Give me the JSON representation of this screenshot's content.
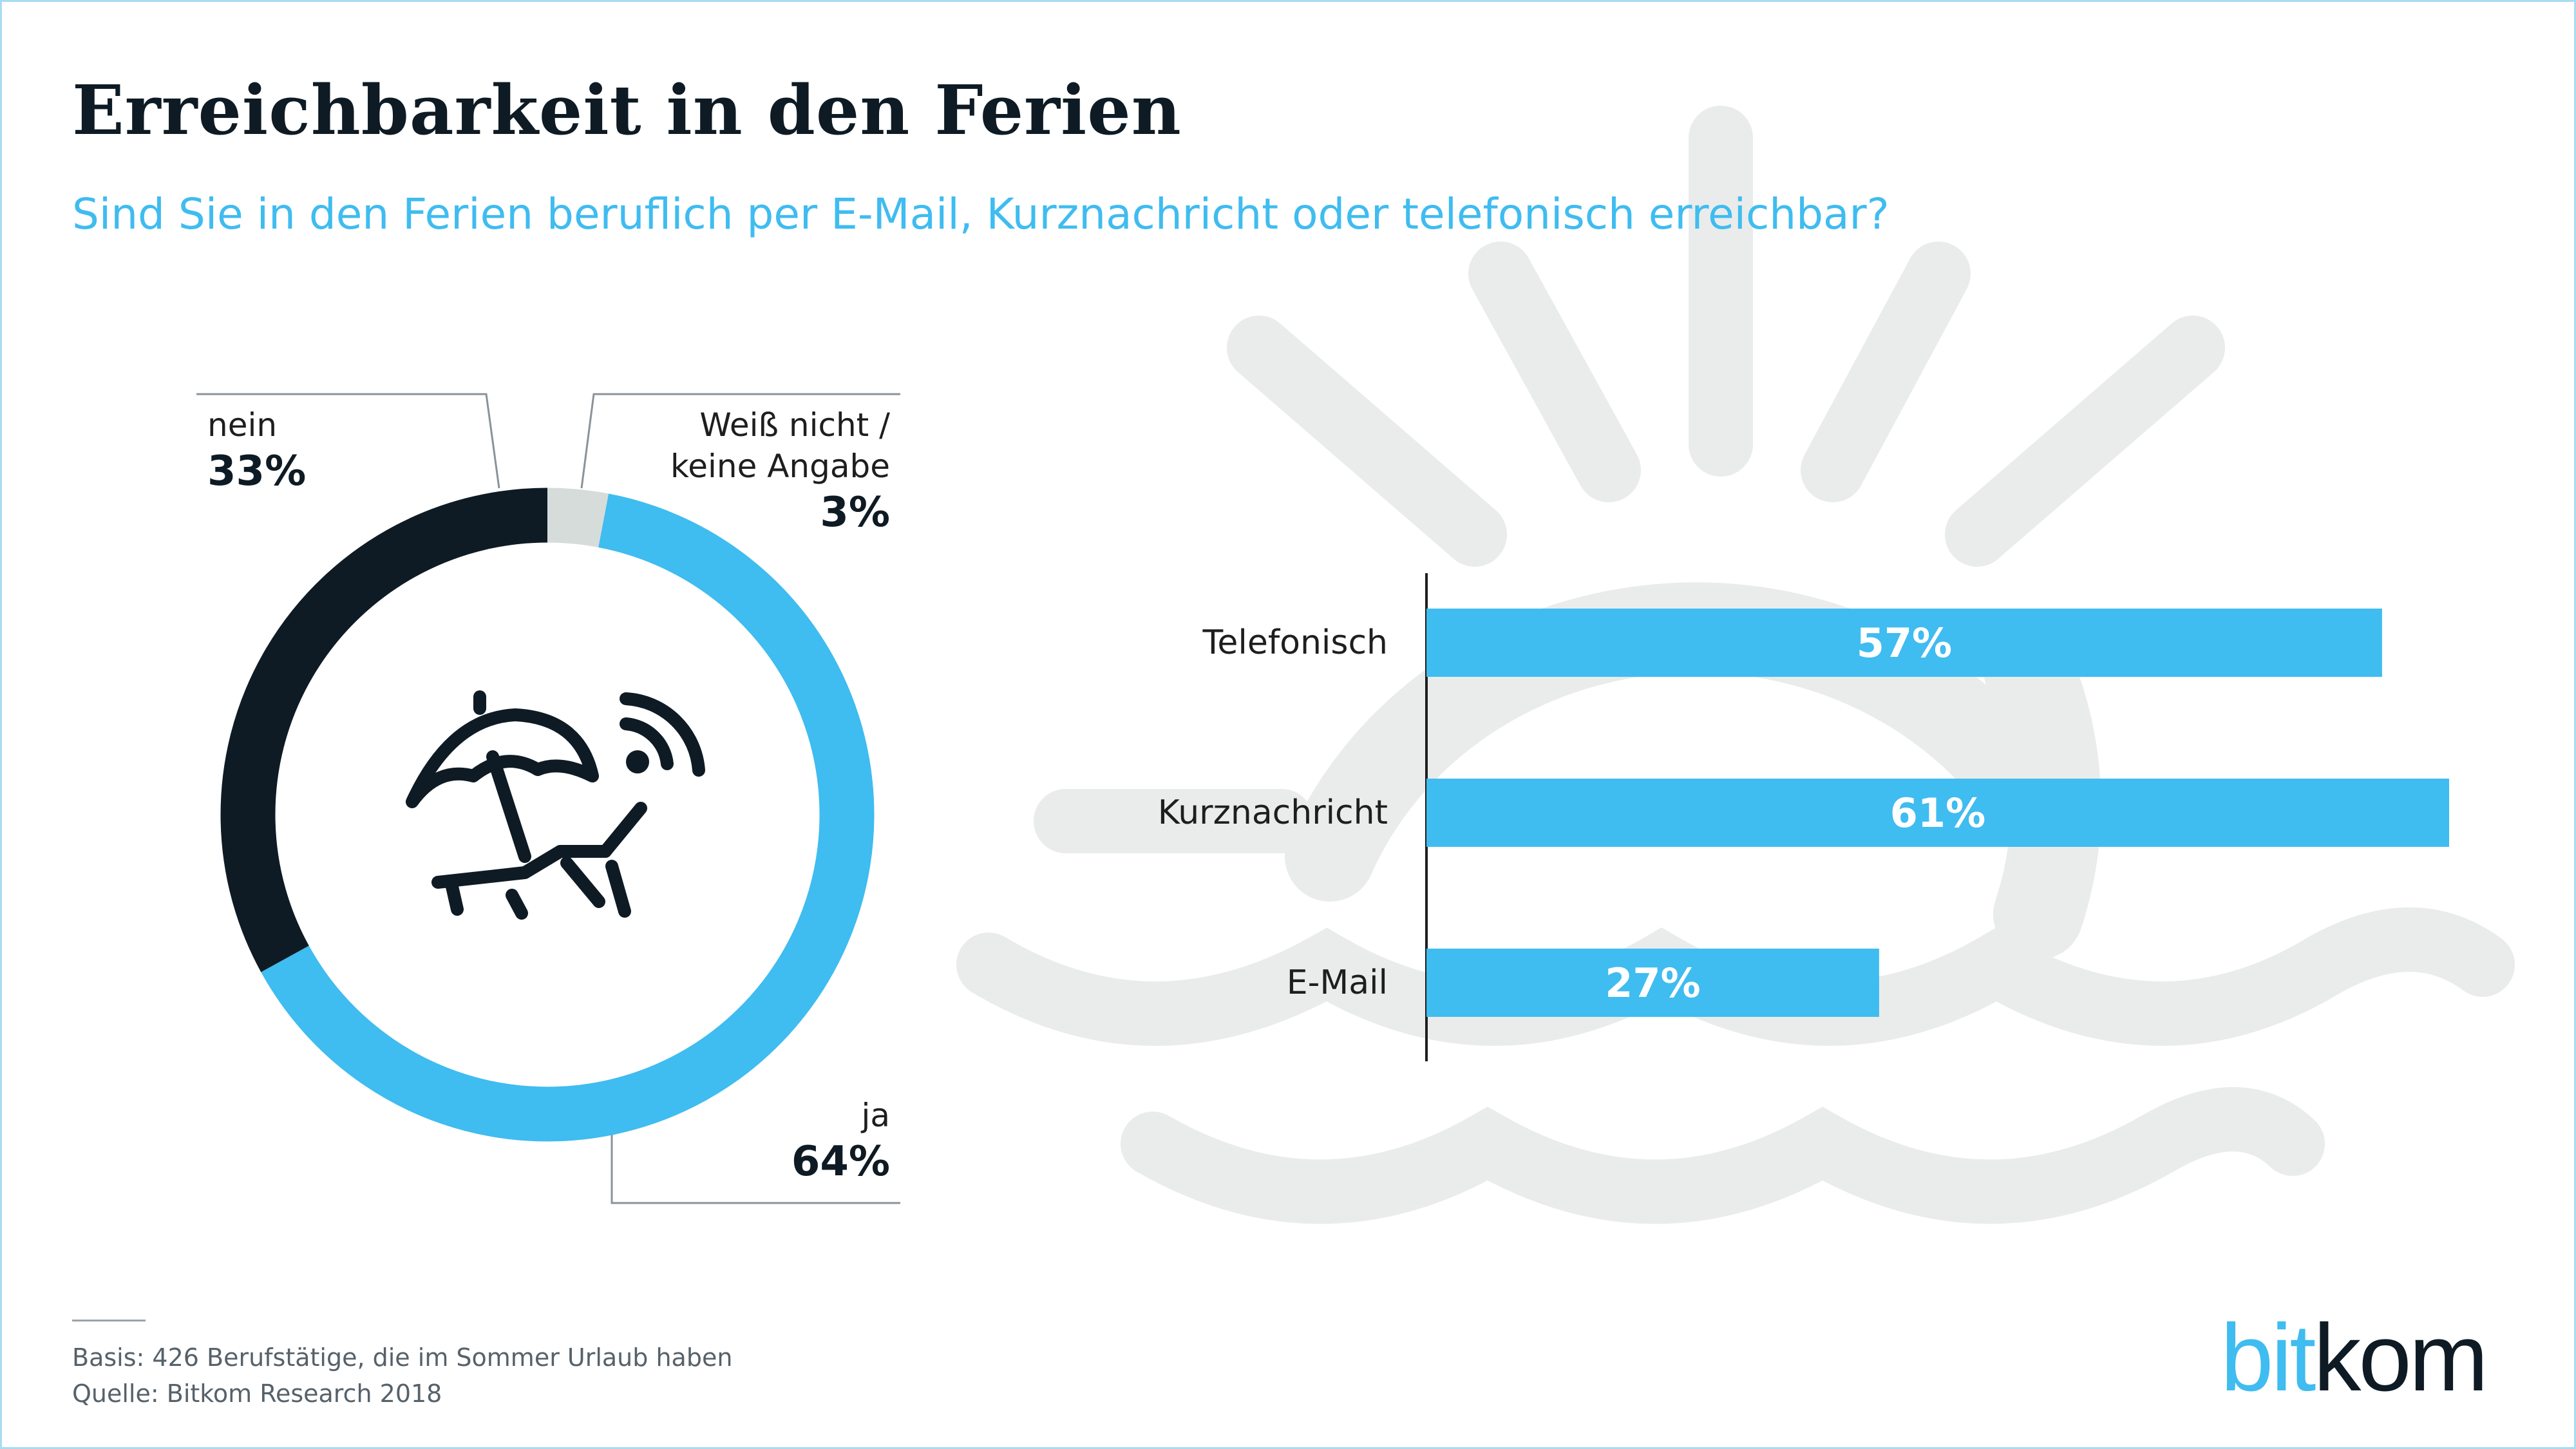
{
  "title": "Erreichbarkeit in den Ferien",
  "subtitle": "Sind Sie in den Ferien beruflich per E-Mail, Kurznachricht oder telefonisch erreichbar?",
  "colors": {
    "accent": "#3fbcf0",
    "dark": "#0e1b24",
    "neutral": "#d6dcda",
    "background_graphic": "#e9eceb"
  },
  "icons": {
    "center": "beach-chair-umbrella-wifi-icon",
    "background": "sun-and-waves-icon"
  },
  "chart_data": [
    {
      "type": "pie",
      "variant": "donut",
      "slices": [
        {
          "label": "ja",
          "value_label": "64%",
          "value": 64,
          "color": "#3fbcf0"
        },
        {
          "label": "nein",
          "value_label": "33%",
          "value": 33,
          "color": "#0e1b24"
        },
        {
          "label": "Weiß nicht / keine Angabe",
          "label_line1": "Weiß nicht /",
          "label_line2": "keine Angabe",
          "value_label": "3%",
          "value": 3,
          "color": "#d6dcda"
        }
      ]
    },
    {
      "type": "bar",
      "orientation": "horizontal",
      "categories": [
        "Telefonisch",
        "Kurznachricht",
        "E-Mail"
      ],
      "values": [
        57,
        61,
        27
      ],
      "value_labels": [
        "57%",
        "61%",
        "27%"
      ],
      "xlim": [
        0,
        65
      ],
      "color": "#3fbcf0"
    }
  ],
  "footer": {
    "basis": "Basis: 426 Berufstätige, die im Sommer Urlaub haben",
    "source": "Quelle: Bitkom Research 2018"
  },
  "logo": {
    "part1": "bit",
    "part2": "kom"
  }
}
